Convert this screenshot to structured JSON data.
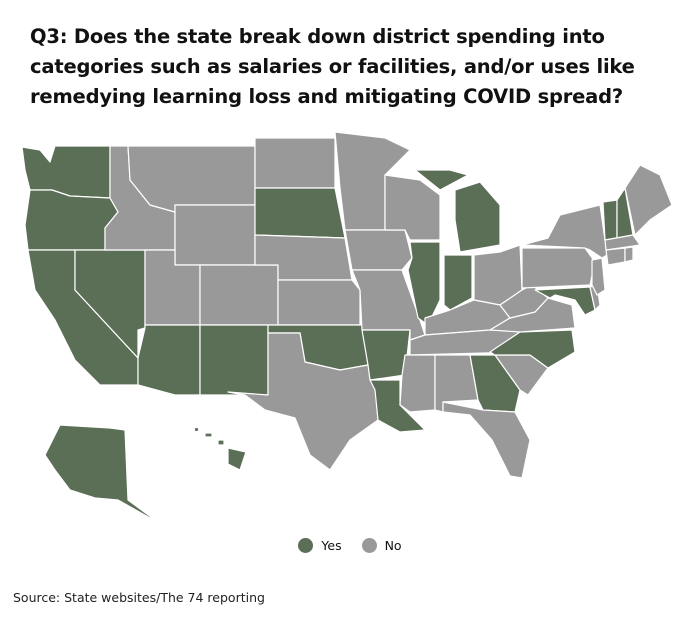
{
  "title": "Q3: Does the state break down district spending into categories such as salaries or facilities, and/or uses like remedying learning loss and mitigating COVID spread?",
  "legend": {
    "yes_label": "Yes",
    "no_label": "No"
  },
  "colors": {
    "yes": "#5b6e56",
    "no": "#999999",
    "border": "#ffffff"
  },
  "source": "Source: State websites/The 74 reporting",
  "states": {
    "WA": "yes",
    "OR": "yes",
    "CA": "yes",
    "NV": "yes",
    "AZ": "yes",
    "NM": "yes",
    "SD": "yes",
    "OK": "yes",
    "AR": "yes",
    "LA": "yes",
    "IL": "yes",
    "IN": "yes",
    "MI": "yes",
    "GA": "yes",
    "NC": "yes",
    "MD": "yes",
    "VT": "yes",
    "NH": "yes",
    "AK": "yes",
    "HI": "yes",
    "ID": "no",
    "MT": "no",
    "WY": "no",
    "UT": "no",
    "CO": "no",
    "ND": "no",
    "NE": "no",
    "KS": "no",
    "TX": "no",
    "MN": "no",
    "IA": "no",
    "MO": "no",
    "WI": "no",
    "KY": "no",
    "TN": "no",
    "MS": "no",
    "AL": "no",
    "FL": "no",
    "SC": "no",
    "VA": "no",
    "WV": "no",
    "OH": "no",
    "PA": "no",
    "NY": "no",
    "NJ": "no",
    "DE": "no",
    "CT": "no",
    "RI": "no",
    "MA": "no",
    "ME": "no"
  }
}
